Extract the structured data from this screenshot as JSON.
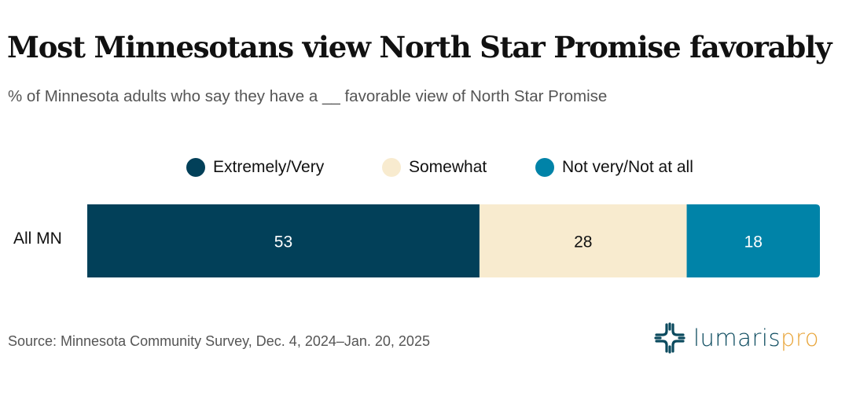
{
  "title": "Most Minnesotans view North Star Promise favorably",
  "subtitle": "% of Minnesota adults who say they have a __ favorable view of North Star Promise",
  "source": "Source: Minnesota Community Survey, Dec. 4, 2024–Jan. 20, 2025",
  "logo": {
    "part1": "lumaris",
    "part2": "pro",
    "color1": "#0b4a5e",
    "color2": "#e8a53a"
  },
  "chart_data": {
    "type": "bar",
    "orientation": "horizontal",
    "stacked": true,
    "categories": [
      "All MN"
    ],
    "series": [
      {
        "name": "Extremely/Very",
        "values": [
          53
        ],
        "color": "#024059",
        "label_color": "#ffffff"
      },
      {
        "name": "Somewhat",
        "values": [
          28
        ],
        "color": "#F8EBCF",
        "label_color": "#111111"
      },
      {
        "name": "Not very/Not at all",
        "values": [
          18
        ],
        "color": "#0083A8",
        "label_color": "#ffffff"
      }
    ],
    "legend_position": "top",
    "grid": false,
    "data_labels": true
  }
}
